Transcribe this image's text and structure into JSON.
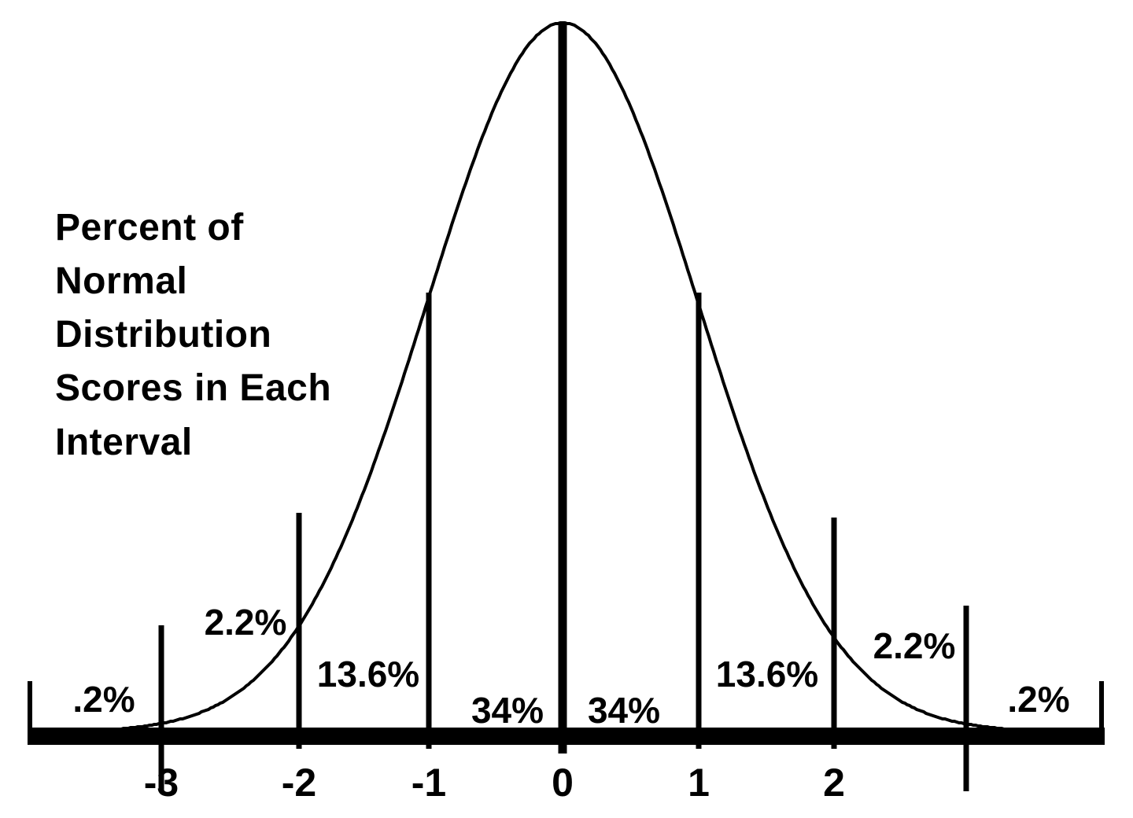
{
  "background": "#ffffff",
  "ink": "#000000",
  "title": "Percent of\nNormal\nDistribution\nScores in Each\nInterval",
  "chart_data": {
    "type": "area",
    "title": "Percent of Normal Distribution Scores in Each Interval",
    "curve": "standard normal (Gaussian) bell curve",
    "xlabel": "",
    "ylabel": "",
    "x_ticks": [
      "-3",
      "-2",
      "-1",
      "0",
      "1",
      "2"
    ],
    "sd_markers": [
      -3,
      -2,
      -1,
      0,
      1,
      2,
      3
    ],
    "grid": false,
    "legend": "none",
    "intervals": [
      {
        "range": "x < -3",
        "label": ".2%",
        "value": 0.2
      },
      {
        "range": "-3 to -2",
        "label": "2.2%",
        "value": 2.2
      },
      {
        "range": "-2 to -1",
        "label": "13.6%",
        "value": 13.6
      },
      {
        "range": "-1 to 0",
        "label": "34%",
        "value": 34
      },
      {
        "range": "0 to 1",
        "label": "34%",
        "value": 34
      },
      {
        "range": "1 to 2",
        "label": "13.6%",
        "value": 13.6
      },
      {
        "range": "2 to 3",
        "label": "2.2%",
        "value": 2.2
      },
      {
        "range": "x > 3",
        "label": ".2%",
        "value": 0.2
      }
    ]
  }
}
